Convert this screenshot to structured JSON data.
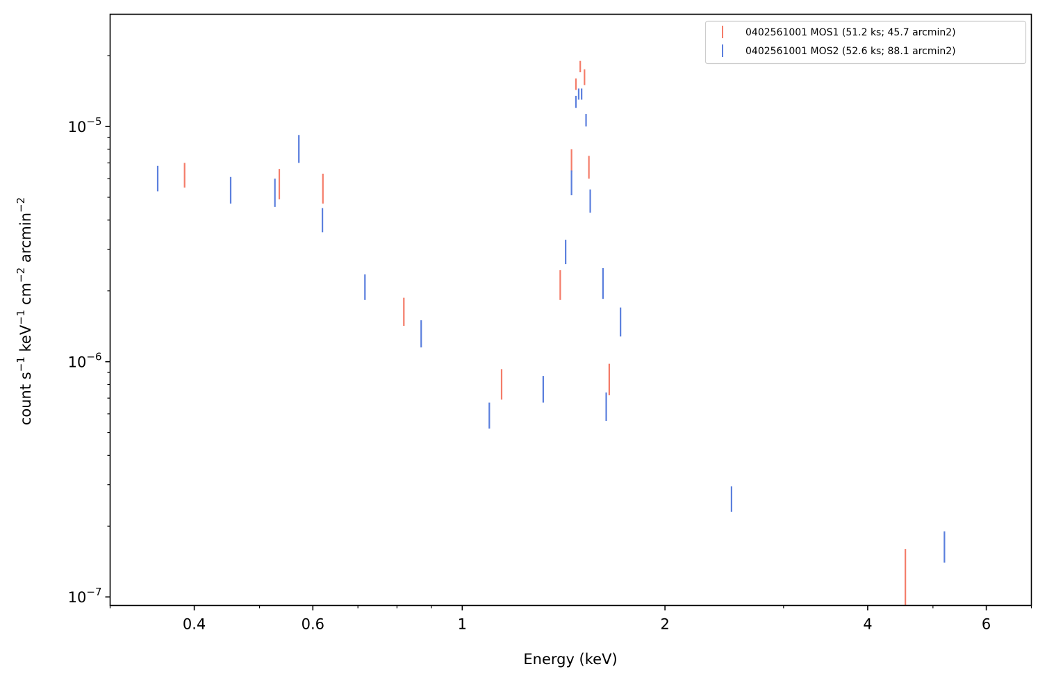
{
  "chart_data": {
    "type": "scatter",
    "xlabel": "Energy (keV)",
    "ylabel_parts": [
      "count s",
      "−1",
      " keV",
      "−1",
      " cm",
      "−2",
      " arcmin",
      "−2"
    ],
    "x_scale": "log",
    "y_scale": "log",
    "xlim": [
      0.3,
      7.0
    ],
    "ylim": [
      9.2e-08,
      3e-05
    ],
    "x_major_ticks": [
      {
        "value": 0.4,
        "label": "0.4"
      },
      {
        "value": 0.6,
        "label": "0.6"
      },
      {
        "value": 1,
        "label": "1"
      },
      {
        "value": 2,
        "label": "2"
      },
      {
        "value": 4,
        "label": "4"
      },
      {
        "value": 6,
        "label": "6"
      }
    ],
    "y_major_ticks": [
      {
        "value": 1e-07,
        "base": "10",
        "exp": "−7"
      },
      {
        "value": 1e-06,
        "base": "10",
        "exp": "−6"
      },
      {
        "value": 1e-05,
        "base": "10",
        "exp": "−5"
      }
    ],
    "grid": false,
    "legend_position": "top-right",
    "series": [
      {
        "name": "0402561001 MOS1 (51.2 ks; 45.7 arcmin2)",
        "color": "#f47c69",
        "points": [
          {
            "x": 0.387,
            "ylo": 5.5e-06,
            "yhi": 7e-06
          },
          {
            "x": 0.535,
            "ylo": 4.9e-06,
            "yhi": 6.6e-06
          },
          {
            "x": 0.621,
            "ylo": 4.7e-06,
            "yhi": 6.3e-06
          },
          {
            "x": 0.819,
            "ylo": 1.42e-06,
            "yhi": 1.87e-06
          },
          {
            "x": 1.144,
            "ylo": 6.9e-07,
            "yhi": 9.3e-07
          },
          {
            "x": 1.398,
            "ylo": 1.83e-06,
            "yhi": 2.45e-06
          },
          {
            "x": 1.453,
            "ylo": 6.4e-06,
            "yhi": 8e-06
          },
          {
            "x": 1.475,
            "ylo": 1.43e-05,
            "yhi": 1.6e-05
          },
          {
            "x": 1.497,
            "ylo": 1.7e-05,
            "yhi": 1.9e-05
          },
          {
            "x": 1.519,
            "ylo": 1.5e-05,
            "yhi": 1.75e-05
          },
          {
            "x": 1.542,
            "ylo": 6e-06,
            "yhi": 7.5e-06
          },
          {
            "x": 1.653,
            "ylo": 7.2e-07,
            "yhi": 9.8e-07
          },
          {
            "x": 4.55,
            "ylo": 9.2e-08,
            "yhi": 1.6e-07
          }
        ]
      },
      {
        "name": "0402561001 MOS2 (52.6 ks; 88.1 arcmin2)",
        "color": "#5b7fdd",
        "points": [
          {
            "x": 0.353,
            "ylo": 5.3e-06,
            "yhi": 6.8e-06
          },
          {
            "x": 0.453,
            "ylo": 4.7e-06,
            "yhi": 6.1e-06
          },
          {
            "x": 0.527,
            "ylo": 4.55e-06,
            "yhi": 6e-06
          },
          {
            "x": 0.572,
            "ylo": 7e-06,
            "yhi": 9.2e-06
          },
          {
            "x": 0.62,
            "ylo": 3.55e-06,
            "yhi": 4.5e-06
          },
          {
            "x": 0.717,
            "ylo": 1.83e-06,
            "yhi": 2.35e-06
          },
          {
            "x": 0.869,
            "ylo": 1.15e-06,
            "yhi": 1.5e-06
          },
          {
            "x": 1.097,
            "ylo": 5.2e-07,
            "yhi": 6.7e-07
          },
          {
            "x": 1.319,
            "ylo": 6.7e-07,
            "yhi": 8.7e-07
          },
          {
            "x": 1.424,
            "ylo": 2.6e-06,
            "yhi": 3.3e-06
          },
          {
            "x": 1.453,
            "ylo": 5.1e-06,
            "yhi": 6.5e-06
          },
          {
            "x": 1.475,
            "ylo": 1.2e-05,
            "yhi": 1.35e-05
          },
          {
            "x": 1.489,
            "ylo": 1.3e-05,
            "yhi": 1.45e-05
          },
          {
            "x": 1.504,
            "ylo": 1.3e-05,
            "yhi": 1.45e-05
          },
          {
            "x": 1.527,
            "ylo": 1e-05,
            "yhi": 1.13e-05
          },
          {
            "x": 1.549,
            "ylo": 4.3e-06,
            "yhi": 5.4e-06
          },
          {
            "x": 1.618,
            "ylo": 1.85e-06,
            "yhi": 2.5e-06
          },
          {
            "x": 1.636,
            "ylo": 5.6e-07,
            "yhi": 7.4e-07
          },
          {
            "x": 1.718,
            "ylo": 1.28e-06,
            "yhi": 1.7e-06
          },
          {
            "x": 2.511,
            "ylo": 2.3e-07,
            "yhi": 2.95e-07
          },
          {
            "x": 5.2,
            "ylo": 1.4e-07,
            "yhi": 1.9e-07
          }
        ]
      }
    ]
  }
}
